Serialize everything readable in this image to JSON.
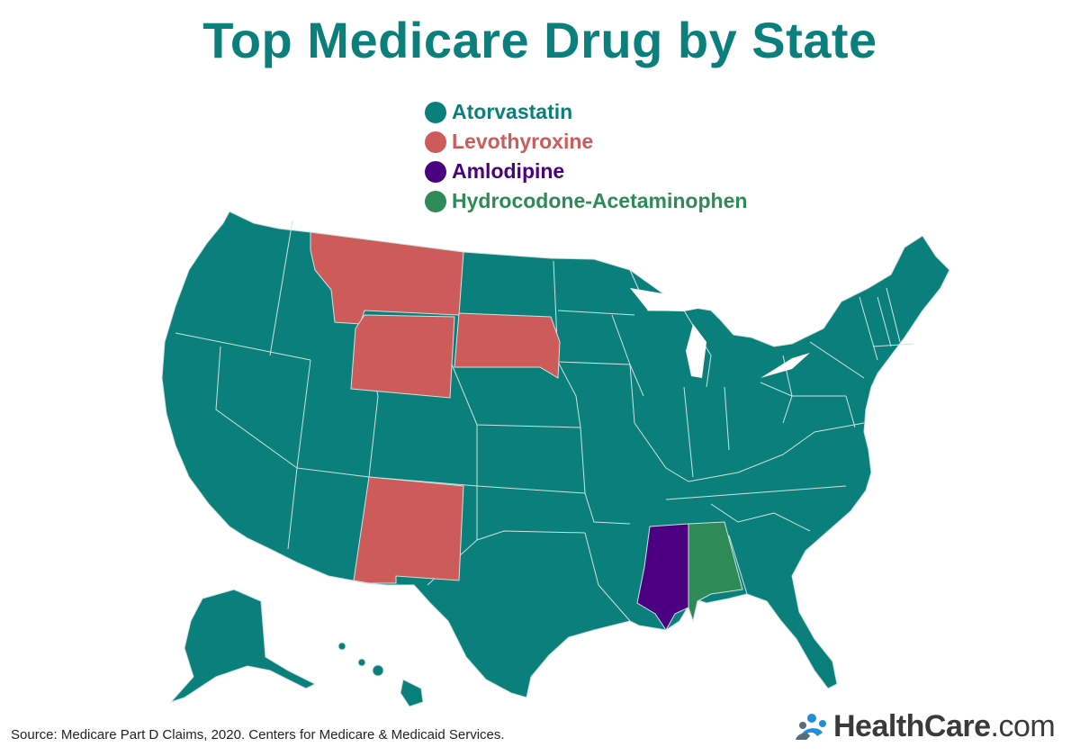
{
  "title": "Top Medicare Drug by State",
  "legend": [
    {
      "label": "Atorvastatin",
      "color": "#0a7f7b"
    },
    {
      "label": "Levothyroxine",
      "color": "#cc5b59"
    },
    {
      "label": "Amlodipine",
      "color": "#4b0082"
    },
    {
      "label": "Hydrocodone-Acetaminophen",
      "color": "#2e8b57"
    }
  ],
  "colors": {
    "atorvastatin": "#0a7f7b",
    "levothyroxine": "#cc5b59",
    "amlodipine": "#4b0082",
    "hydrocodone": "#2e8b57",
    "border": "#cfe3e1"
  },
  "states": {
    "Montana": "Levothyroxine",
    "Wyoming": "Levothyroxine",
    "South Dakota": "Levothyroxine",
    "New Mexico": "Levothyroxine",
    "Mississippi": "Amlodipine",
    "Alabama": "Hydrocodone-Acetaminophen",
    "all_other_states": "Atorvastatin"
  },
  "source": "Source: Medicare Part D Claims, 2020. Centers for Medicare & Medicaid Services.",
  "brand": {
    "bold": "HealthCare",
    "light": ".com",
    "icon": "people-logo-icon",
    "icon_colors": [
      "#1f8fd6",
      "#5a6b7a"
    ]
  }
}
